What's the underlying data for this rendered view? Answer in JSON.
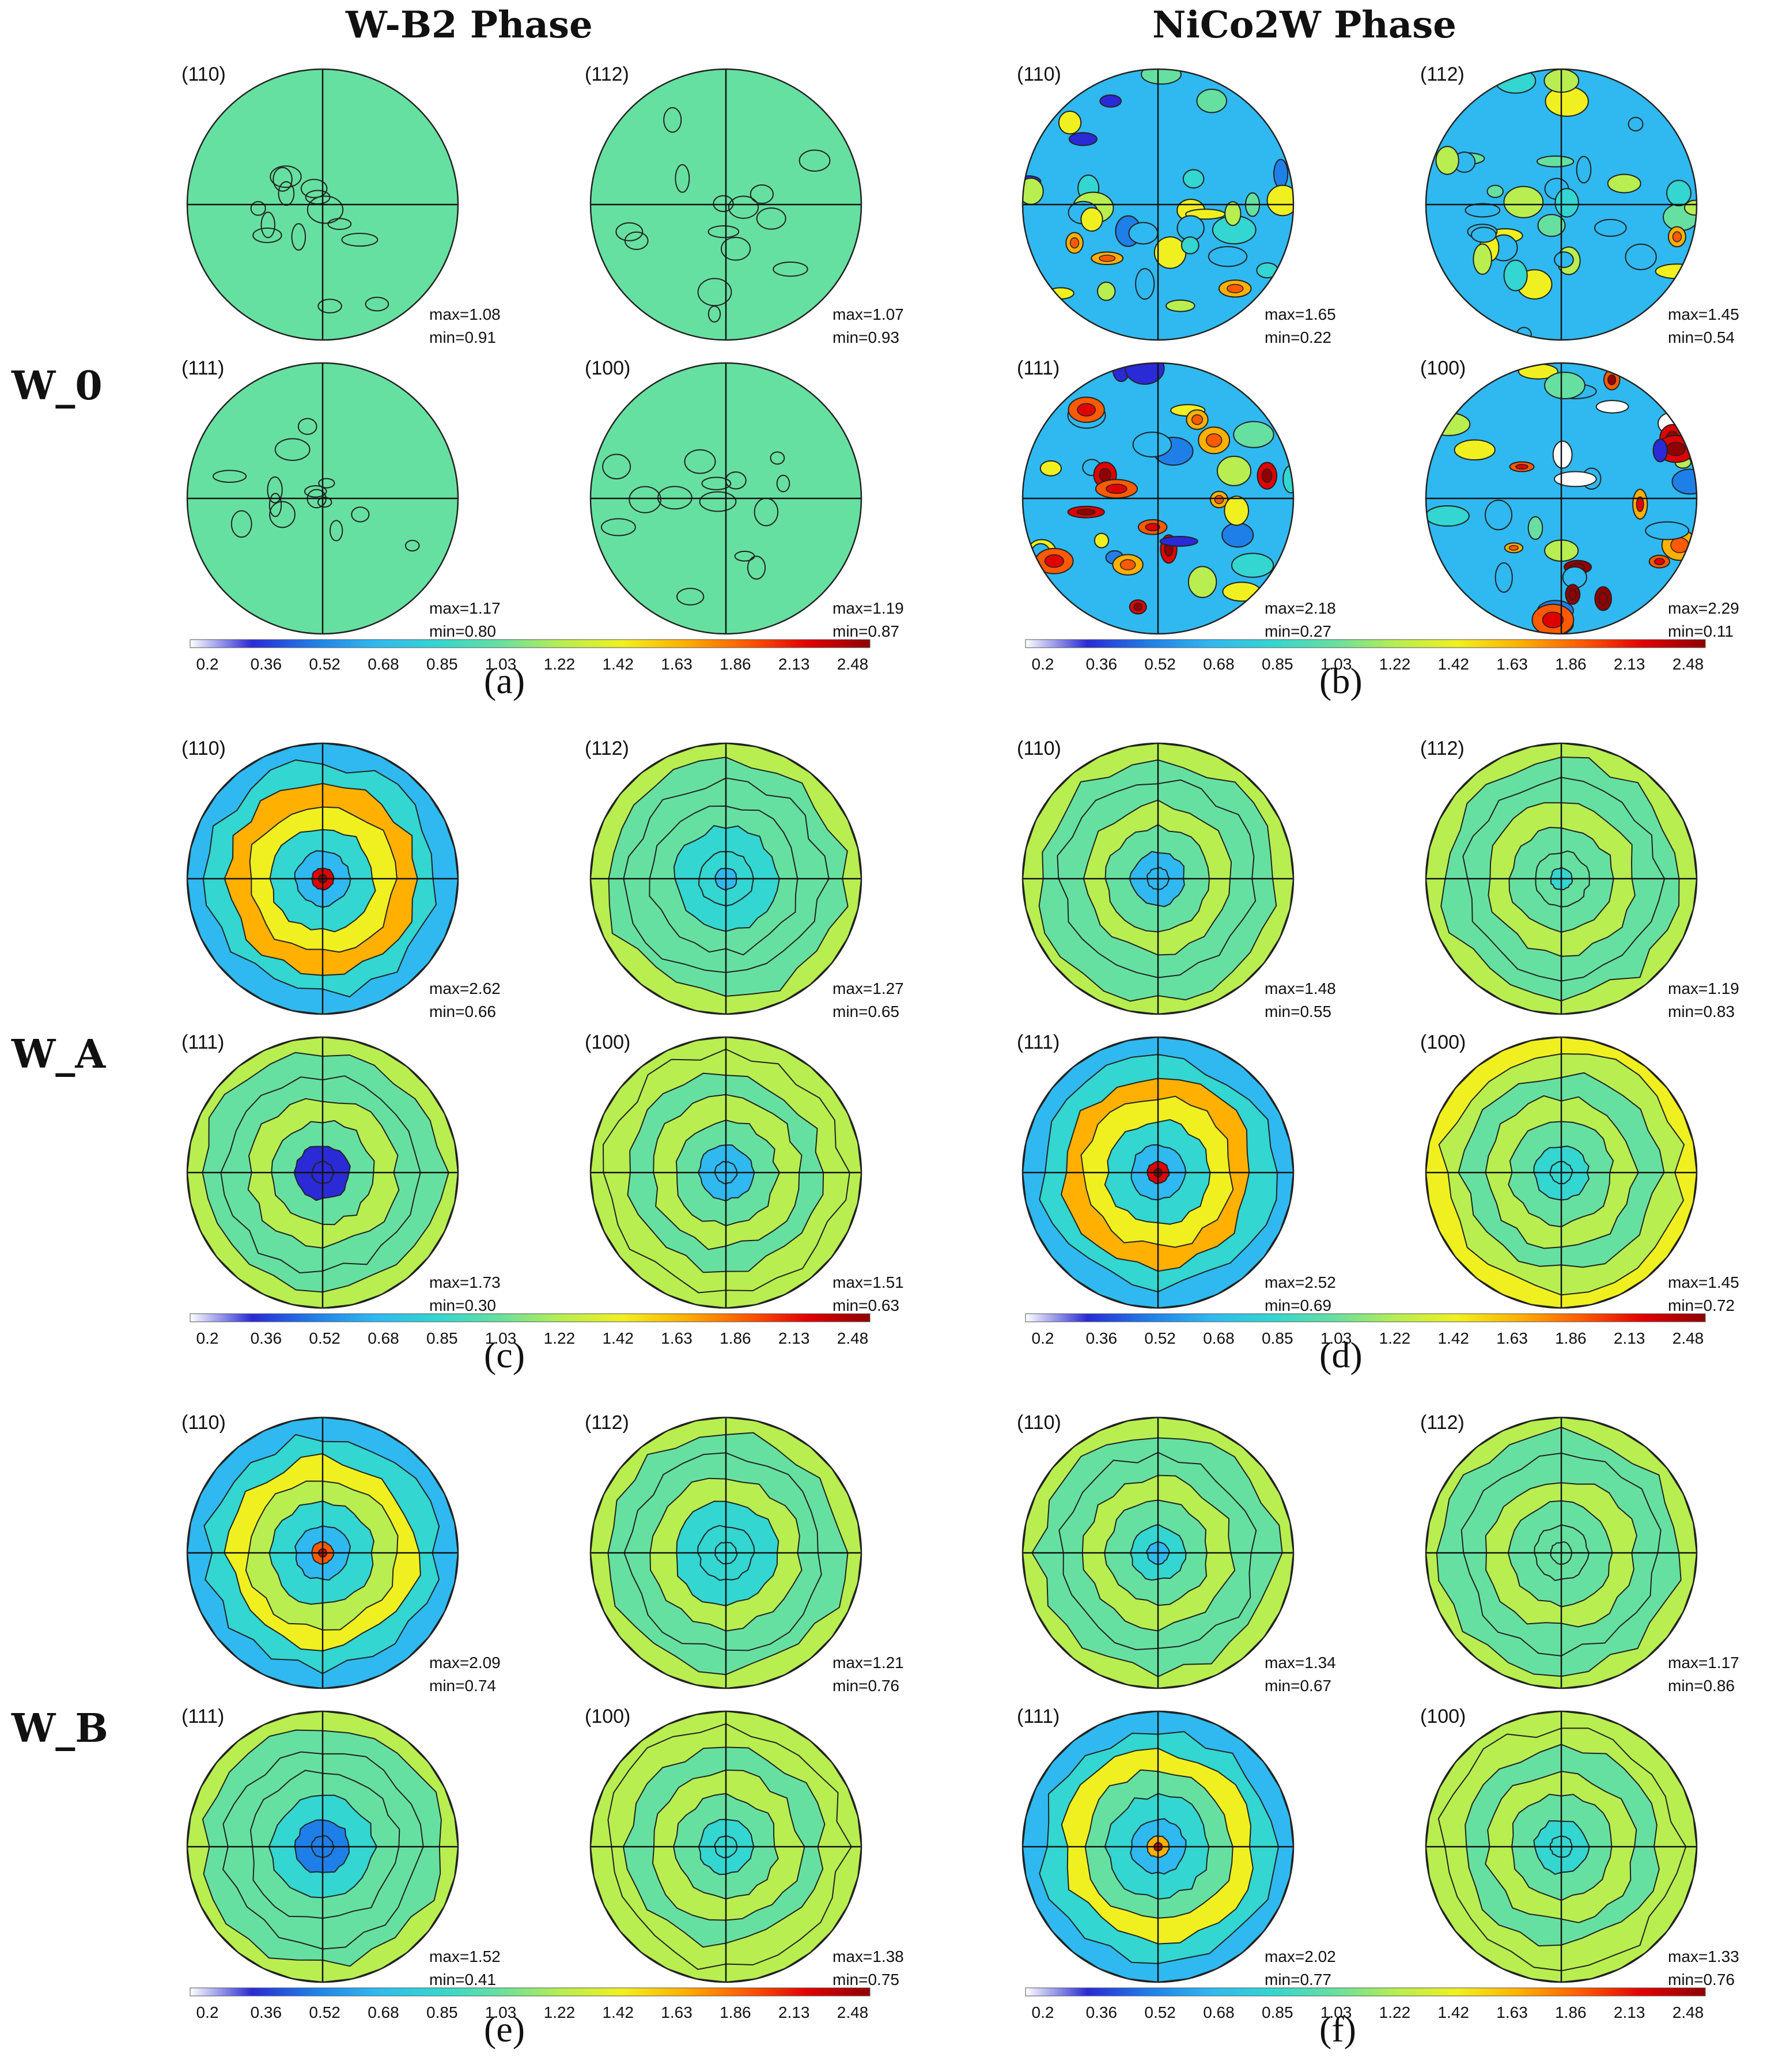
{
  "titles": {
    "left": "W-B2 Phase",
    "right": "NiCo2W Phase"
  },
  "row_labels": [
    "W_0",
    "W_A",
    "W_B"
  ],
  "colorbar": {
    "ticks": [
      "0.2",
      "0.36",
      "0.52",
      "0.68",
      "0.85",
      "1.03",
      "1.22",
      "1.42",
      "1.63",
      "1.86",
      "2.13",
      "2.48"
    ],
    "colors": [
      "#ffffff",
      "#2a2ad6",
      "#1f7fe8",
      "#2fb9f0",
      "#33d6d0",
      "#66e0a0",
      "#b8ee50",
      "#f0f020",
      "#ffb000",
      "#ff5a00",
      "#e00000",
      "#900000"
    ]
  },
  "chart_data": [
    {
      "type": "pole_figure",
      "panel": "(a)",
      "sample": "W_0",
      "phase": "W-B2 Phase",
      "poles": [
        {
          "label": "(110)",
          "max_text": "max=1.08",
          "min_text": "min=0.91",
          "max": 1.08,
          "min": 0.91,
          "pattern": "random"
        },
        {
          "label": "(112)",
          "max_text": "max=1.07",
          "min_text": "min=0.93",
          "max": 1.07,
          "min": 0.93,
          "pattern": "random"
        },
        {
          "label": "(111)",
          "max_text": "max=1.17",
          "min_text": "min=0.80",
          "max": 1.17,
          "min": 0.8,
          "pattern": "random"
        },
        {
          "label": "(100)",
          "max_text": "max=1.19",
          "min_text": "min=0.87",
          "max": 1.19,
          "min": 0.87,
          "pattern": "random"
        }
      ]
    },
    {
      "type": "pole_figure",
      "panel": "(b)",
      "sample": "W_0",
      "phase": "NiCo2W Phase",
      "poles": [
        {
          "label": "(110)",
          "max_text": "max=1.65",
          "min_text": "min=0.22",
          "max": 1.65,
          "min": 0.22,
          "pattern": "spotty"
        },
        {
          "label": "(112)",
          "max_text": "max=1.45",
          "min_text": "min=0.54",
          "max": 1.45,
          "min": 0.54,
          "pattern": "spotty"
        },
        {
          "label": "(111)",
          "max_text": "max=2.18",
          "min_text": "min=0.27",
          "max": 2.18,
          "min": 0.27,
          "pattern": "spotty"
        },
        {
          "label": "(100)",
          "max_text": "max=2.29",
          "min_text": "min=0.11",
          "max": 2.29,
          "min": 0.11,
          "pattern": "spotty"
        }
      ]
    },
    {
      "type": "pole_figure",
      "panel": "(c)",
      "sample": "W_A",
      "phase": "W-B2 Phase",
      "poles": [
        {
          "label": "(110)",
          "max_text": "max=2.62",
          "min_text": "min=0.66",
          "max": 2.62,
          "min": 0.66,
          "pattern": "center-peak-ring"
        },
        {
          "label": "(112)",
          "max_text": "max=1.27",
          "min_text": "min=0.65",
          "max": 1.27,
          "min": 0.65,
          "pattern": "center-low-ring"
        },
        {
          "label": "(111)",
          "max_text": "max=1.73",
          "min_text": "min=0.30",
          "max": 1.73,
          "min": 0.3,
          "pattern": "center-low-ring"
        },
        {
          "label": "(100)",
          "max_text": "max=1.51",
          "min_text": "min=0.63",
          "max": 1.51,
          "min": 0.63,
          "pattern": "center-low-ring"
        }
      ]
    },
    {
      "type": "pole_figure",
      "panel": "(d)",
      "sample": "W_A",
      "phase": "NiCo2W Phase",
      "poles": [
        {
          "label": "(110)",
          "max_text": "max=1.48",
          "min_text": "min=0.55",
          "max": 1.48,
          "min": 0.55,
          "pattern": "center-low-ring"
        },
        {
          "label": "(112)",
          "max_text": "max=1.19",
          "min_text": "min=0.83",
          "max": 1.19,
          "min": 0.83,
          "pattern": "center-low-ring"
        },
        {
          "label": "(111)",
          "max_text": "max=2.52",
          "min_text": "min=0.69",
          "max": 2.52,
          "min": 0.69,
          "pattern": "center-peak-ring"
        },
        {
          "label": "(100)",
          "max_text": "max=1.45",
          "min_text": "min=0.72",
          "max": 1.45,
          "min": 0.72,
          "pattern": "center-low-ring"
        }
      ]
    },
    {
      "type": "pole_figure",
      "panel": "(e)",
      "sample": "W_B",
      "phase": "W-B2 Phase",
      "poles": [
        {
          "label": "(110)",
          "max_text": "max=2.09",
          "min_text": "min=0.74",
          "max": 2.09,
          "min": 0.74,
          "pattern": "center-peak-ring"
        },
        {
          "label": "(112)",
          "max_text": "max=1.21",
          "min_text": "min=0.76",
          "max": 1.21,
          "min": 0.76,
          "pattern": "center-low-ring"
        },
        {
          "label": "(111)",
          "max_text": "max=1.52",
          "min_text": "min=0.41",
          "max": 1.52,
          "min": 0.41,
          "pattern": "center-low-ring"
        },
        {
          "label": "(100)",
          "max_text": "max=1.38",
          "min_text": "min=0.75",
          "max": 1.38,
          "min": 0.75,
          "pattern": "center-low-ring"
        }
      ]
    },
    {
      "type": "pole_figure",
      "panel": "(f)",
      "sample": "W_B",
      "phase": "NiCo2W Phase",
      "poles": [
        {
          "label": "(110)",
          "max_text": "max=1.34",
          "min_text": "min=0.67",
          "max": 1.34,
          "min": 0.67,
          "pattern": "center-low-ring"
        },
        {
          "label": "(112)",
          "max_text": "max=1.17",
          "min_text": "min=0.86",
          "max": 1.17,
          "min": 0.86,
          "pattern": "center-low-ring"
        },
        {
          "label": "(111)",
          "max_text": "max=2.02",
          "min_text": "min=0.77",
          "max": 2.02,
          "min": 0.77,
          "pattern": "center-peak-ring"
        },
        {
          "label": "(100)",
          "max_text": "max=1.33",
          "min_text": "min=0.76",
          "max": 1.33,
          "min": 0.76,
          "pattern": "center-low-ring"
        }
      ]
    }
  ]
}
